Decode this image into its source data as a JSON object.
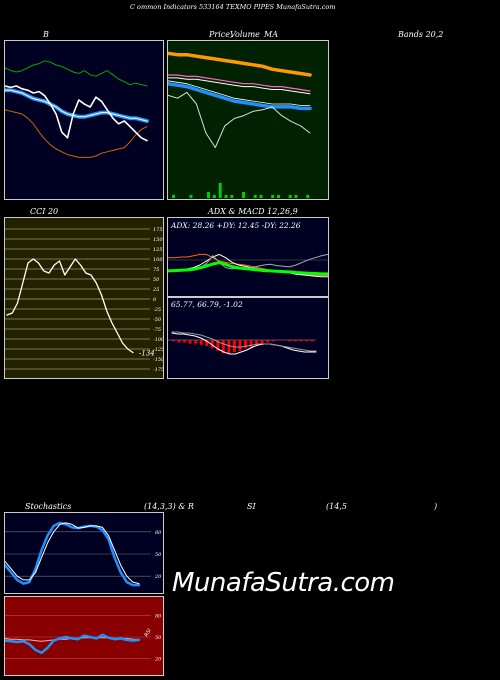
{
  "page": {
    "header": "C          ommon  Indicators 533164  TEXMO PIPES MunafaSutra.com",
    "watermark": "MunafaSutra.com"
  },
  "labels": {
    "bb": "B",
    "price": "Price,",
    "volume": "Volume",
    "ma": "MA",
    "bands": "Bands 20,2",
    "cci": "CCI 20",
    "adx_macd": "ADX  & MACD 12,26,9",
    "adx_values": "ADX: 28.26  +DY: 12.45 -DY: 22.26",
    "macd_values": "65.77,  66.79,  -1.02",
    "cci_value": "-134",
    "stoch": "Stochastics",
    "stoch_params": "(14,3,3) & R",
    "rsi": "SI",
    "rsi_params": "(14,5",
    "rsi_close": ")",
    "stoch_ticks": [
      "80",
      "50",
      "20"
    ],
    "rsi_ticks": [
      "80",
      "50",
      "20"
    ],
    "rsi_side_label": "RSI"
  },
  "colors": {
    "navy_bg": "#000022",
    "green_bg": "#002200",
    "olive_bg": "#222200",
    "red_bg": "#880000",
    "blue": "#1e90ff",
    "orange": "#ff9900",
    "green": "#00cc00"
  },
  "chart_data": [
    {
      "type": "line",
      "panel": "bollinger",
      "series": [
        {
          "values": [
            88,
            86,
            85,
            86,
            88,
            90,
            91,
            93,
            92,
            90,
            89,
            87,
            85,
            84,
            86,
            83,
            82,
            84,
            86,
            83,
            80,
            78,
            76,
            77,
            76,
            75
          ]
        },
        {
          "values": [
            75,
            74,
            75,
            73,
            72,
            70,
            71,
            68,
            62,
            55,
            42,
            38,
            55,
            65,
            62,
            60,
            67,
            64,
            58,
            52,
            48,
            50,
            46,
            42,
            38,
            36
          ]
        },
        {
          "values": [
            72,
            72,
            71,
            70,
            68,
            66,
            65,
            64,
            62,
            60,
            57,
            55,
            54,
            53,
            53,
            54,
            55,
            56,
            56,
            55,
            54,
            53,
            52,
            52,
            51,
            50
          ]
        },
        {
          "values": [
            58,
            57,
            56,
            55,
            52,
            48,
            42,
            37,
            33,
            30,
            28,
            26,
            25,
            24,
            24,
            24,
            25,
            27,
            28,
            29,
            30,
            31,
            35,
            40,
            44,
            46
          ]
        }
      ]
    },
    {
      "type": "line",
      "panel": "price_ma",
      "series": [
        {
          "values": [
            95,
            94,
            94,
            93,
            92,
            91,
            90,
            89,
            88,
            87,
            86,
            84,
            83,
            82,
            81,
            80
          ]
        },
        {
          "values": [
            80,
            80,
            79,
            79,
            78,
            77,
            76,
            75,
            74,
            74,
            73,
            72,
            72,
            71,
            70,
            69
          ]
        },
        {
          "values": [
            74,
            73,
            72,
            70,
            68,
            66,
            64,
            62,
            61,
            60,
            59,
            58,
            58,
            58,
            57,
            57
          ]
        },
        {
          "values": [
            66,
            64,
            68,
            60,
            40,
            30,
            45,
            50,
            52,
            55,
            56,
            58,
            52,
            48,
            45,
            40
          ]
        }
      ],
      "volume": [
        1,
        0,
        0,
        1,
        0,
        0,
        2,
        1,
        5,
        1,
        1,
        0,
        2,
        0,
        1,
        1,
        0,
        1,
        1,
        0,
        1,
        1,
        0,
        1
      ]
    },
    {
      "type": "line",
      "panel": "cci",
      "y_ticks": [
        175,
        150,
        125,
        100,
        75,
        50,
        25,
        0,
        -25,
        -50,
        -75,
        -100,
        -125,
        -150,
        -175
      ],
      "values": [
        -40,
        -35,
        -10,
        40,
        90,
        100,
        90,
        70,
        65,
        85,
        95,
        60,
        80,
        100,
        85,
        65,
        60,
        40,
        10,
        -30,
        -60,
        -85,
        -110,
        -125,
        -134
      ]
    },
    {
      "type": "line",
      "panel": "adx",
      "series": [
        {
          "values": [
            35,
            36,
            36,
            37,
            38,
            40,
            46,
            58,
            48,
            40,
            38,
            40,
            39,
            40,
            42,
            44,
            45,
            43,
            42,
            41,
            44,
            48,
            52,
            55,
            58,
            60
          ]
        },
        {
          "values": [
            55,
            55,
            56,
            56,
            58,
            60,
            60,
            55,
            50,
            48,
            46,
            45,
            44,
            42,
            40,
            38,
            36,
            35,
            34,
            33,
            32,
            30,
            29,
            28,
            28,
            28
          ]
        },
        {
          "values": [
            35,
            36,
            37,
            38,
            40,
            44,
            50,
            56,
            60,
            55,
            48,
            44,
            42,
            40,
            38,
            36,
            35,
            34,
            33,
            32,
            30,
            29,
            28,
            27,
            26,
            26
          ]
        }
      ]
    },
    {
      "type": "bar",
      "panel": "macd",
      "values": [
        -1,
        -2,
        -2,
        -3,
        -3,
        -4,
        -5,
        -7,
        -9,
        -11,
        -11,
        -10,
        -9,
        -7,
        -6,
        -4,
        -3,
        -2,
        -1,
        0,
        0,
        -1,
        -1,
        -1,
        -1,
        -1
      ],
      "series": [
        {
          "values": [
            85,
            84,
            84,
            83,
            82,
            80,
            77,
            73,
            69,
            66,
            64,
            64,
            66,
            68,
            71,
            73,
            74,
            74,
            73,
            72,
            70,
            68,
            67,
            66,
            66,
            66
          ]
        },
        {
          "values": [
            86,
            86,
            85,
            85,
            84,
            83,
            81,
            79,
            76,
            74,
            72,
            71,
            71,
            72,
            73,
            74,
            74,
            74,
            73,
            72,
            71,
            70,
            69,
            68,
            67,
            67
          ]
        }
      ]
    },
    {
      "type": "line",
      "panel": "stochastics",
      "y_ticks": [
        80,
        50,
        20
      ],
      "series": [
        {
          "values": [
            40,
            30,
            20,
            15,
            15,
            25,
            45,
            65,
            80,
            90,
            92,
            90,
            85,
            86,
            88,
            88,
            86,
            75,
            55,
            35,
            20,
            12,
            10
          ]
        },
        {
          "values": [
            35,
            25,
            15,
            10,
            12,
            30,
            55,
            75,
            88,
            92,
            90,
            86,
            85,
            87,
            88,
            87,
            82,
            70,
            45,
            25,
            12,
            8,
            8
          ]
        }
      ]
    },
    {
      "type": "line",
      "panel": "rsi",
      "y_ticks": [
        80,
        50,
        20
      ],
      "series": [
        {
          "values": [
            45,
            44,
            43,
            44,
            40,
            32,
            28,
            35,
            45,
            48,
            50,
            48,
            47,
            52,
            50,
            48,
            53,
            49,
            47,
            48,
            46,
            45,
            46
          ]
        },
        {
          "values": [
            48,
            47,
            47,
            46,
            46,
            45,
            44,
            45,
            46,
            47,
            47,
            48,
            48,
            49,
            49,
            49,
            49,
            49,
            48,
            48,
            48,
            47,
            47
          ]
        }
      ]
    }
  ]
}
